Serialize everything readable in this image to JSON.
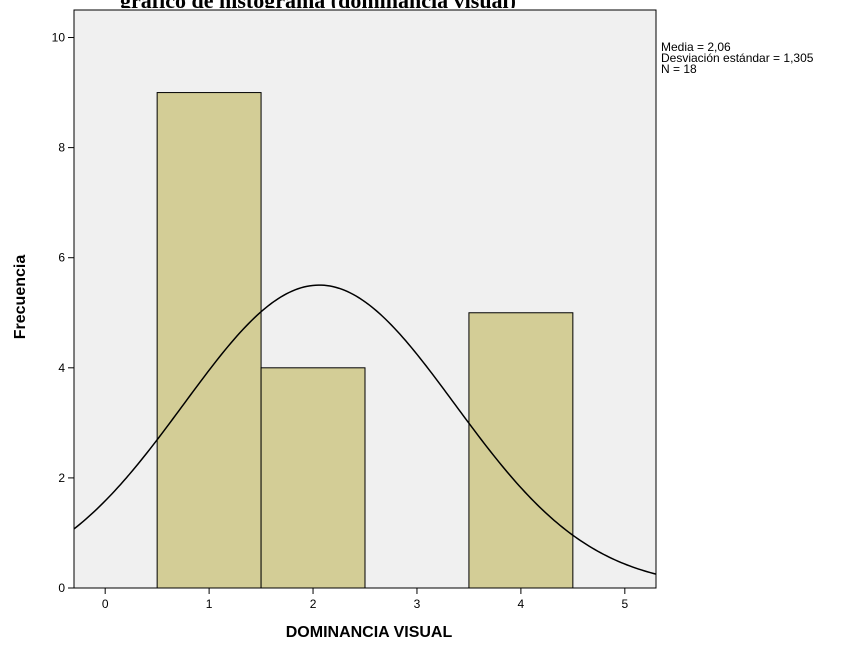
{
  "header": {
    "title_partial": "gráfico de histograma (dominancia visual)"
  },
  "chart_data": {
    "type": "histogram",
    "xlabel": "DOMINANCIA VISUAL",
    "ylabel": "Frecuencia",
    "xlim": [
      -0.3,
      5.3
    ],
    "ylim": [
      0,
      10.5
    ],
    "x_ticks": [
      0,
      1,
      2,
      3,
      4,
      5
    ],
    "y_ticks": [
      0,
      2,
      4,
      6,
      8,
      10
    ],
    "bins": [
      {
        "x0": 0.5,
        "x1": 1.5,
        "count": 9
      },
      {
        "x0": 1.5,
        "x1": 2.5,
        "count": 4
      },
      {
        "x0": 2.5,
        "x1": 3.5,
        "count": 0
      },
      {
        "x0": 3.5,
        "x1": 4.5,
        "count": 5
      }
    ],
    "normal_curve": {
      "mean": 2.06,
      "sd": 1.305,
      "n": 18,
      "bin_width": 1
    },
    "stats_lines": [
      "Media = 2,06",
      "Desviación estándar = 1,305",
      "N = 18"
    ],
    "colors": {
      "bar_fill": "#d3cd96",
      "bar_stroke": "#000000",
      "plot_background": "#f0f0f0",
      "curve": "#000000"
    },
    "grid": false
  }
}
